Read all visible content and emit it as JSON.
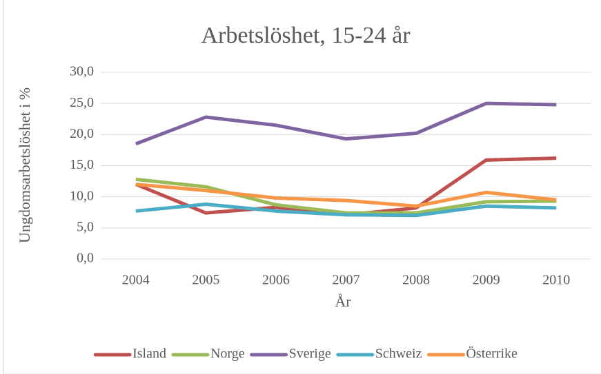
{
  "chart_data": {
    "type": "line",
    "title": "Arbetslöshet, 15-24 år",
    "x_label": "År",
    "y_label": "Ungdomsarbetslöshet i %",
    "categories": [
      "2004",
      "2005",
      "2006",
      "2007",
      "2008",
      "2009",
      "2010"
    ],
    "series": [
      {
        "name": "Island",
        "color": "#c0504d",
        "values": [
          12.0,
          7.4,
          8.3,
          7.1,
          8.2,
          15.9,
          16.2
        ]
      },
      {
        "name": "Norge",
        "color": "#9bbb59",
        "values": [
          12.8,
          11.6,
          8.7,
          7.4,
          7.4,
          9.2,
          9.3
        ]
      },
      {
        "name": "Sverige",
        "color": "#8064a2",
        "values": [
          18.5,
          22.8,
          21.5,
          19.3,
          20.2,
          25.0,
          24.8
        ]
      },
      {
        "name": "Schweiz",
        "color": "#4bacc6",
        "values": [
          7.7,
          8.8,
          7.7,
          7.1,
          7.0,
          8.5,
          8.2
        ]
      },
      {
        "name": "Österrike",
        "color": "#f79646",
        "values": [
          12.0,
          11.0,
          9.8,
          9.4,
          8.5,
          10.7,
          9.5
        ]
      }
    ],
    "ylim": [
      0,
      30
    ],
    "yticks": [
      {
        "value": 0,
        "label": "0,0"
      },
      {
        "value": 5,
        "label": "5,0"
      },
      {
        "value": 10,
        "label": "10,0"
      },
      {
        "value": 15,
        "label": "15,0"
      },
      {
        "value": 20,
        "label": "20,0"
      },
      {
        "value": 25,
        "label": "25,0"
      },
      {
        "value": 30,
        "label": "30,0"
      }
    ],
    "grid": true,
    "legend": "bottom"
  }
}
